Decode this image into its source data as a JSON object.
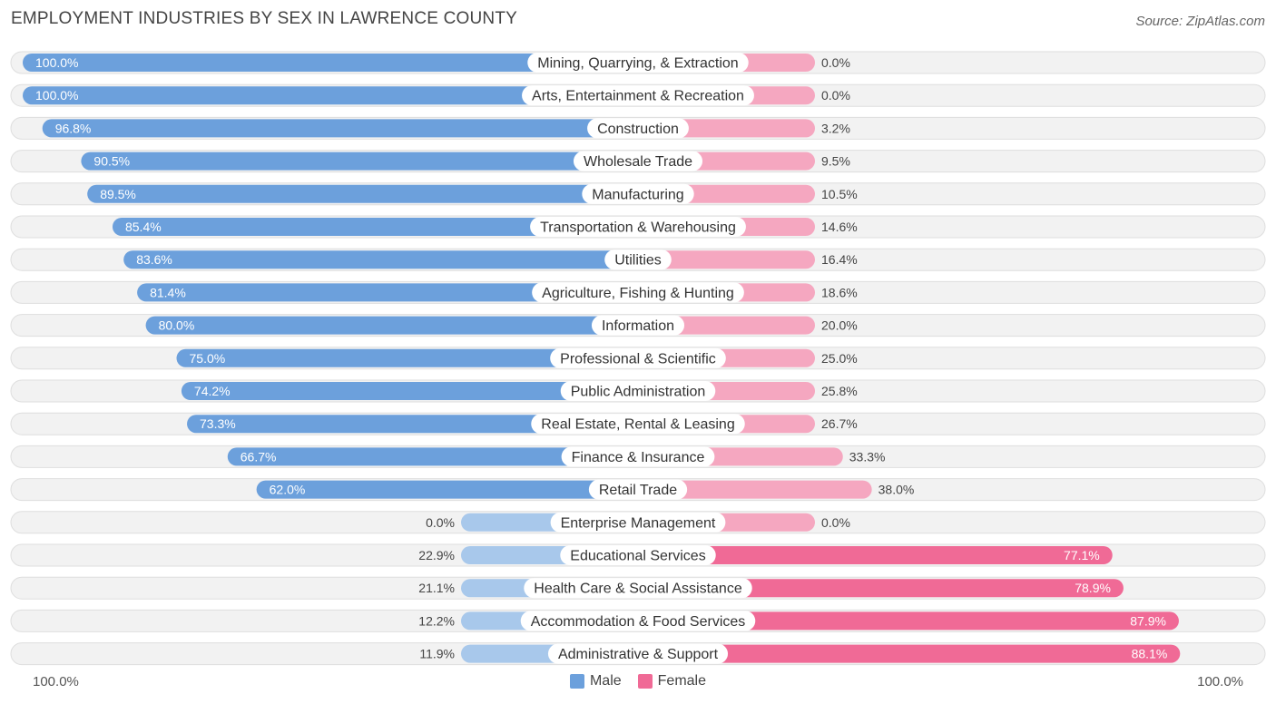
{
  "header": {
    "title": "Employment Industries by Sex in Lawrence County",
    "source": "Source: ZipAtlas.com"
  },
  "axis": {
    "left_label": "100.0%",
    "right_label": "100.0%"
  },
  "legend": {
    "male_label": "Male",
    "female_label": "Female"
  },
  "colors": {
    "male_strong": "#6ca0dc",
    "male_light": "#a8c8eb",
    "female_strong": "#f06a96",
    "female_light": "#f5a7c0",
    "row_bg": "#f2f2f2",
    "row_border": "#dedede"
  },
  "chart_data": {
    "type": "bar",
    "orientation": "horizontal-diverging",
    "title": "Employment Industries by Sex in Lawrence County",
    "xlim": [
      -100,
      100
    ],
    "categories": [
      "Mining, Quarrying, & Extraction",
      "Arts, Entertainment & Recreation",
      "Construction",
      "Wholesale Trade",
      "Manufacturing",
      "Transportation & Warehousing",
      "Utilities",
      "Agriculture, Fishing & Hunting",
      "Information",
      "Professional & Scientific",
      "Public Administration",
      "Real Estate, Rental & Leasing",
      "Finance & Insurance",
      "Retail Trade",
      "Enterprise Management",
      "Educational Services",
      "Health Care & Social Assistance",
      "Accommodation & Food Services",
      "Administrative & Support"
    ],
    "series": [
      {
        "name": "Male",
        "values": [
          100.0,
          100.0,
          96.8,
          90.5,
          89.5,
          85.4,
          83.6,
          81.4,
          80.0,
          75.0,
          74.2,
          73.3,
          66.7,
          62.0,
          0.0,
          22.9,
          21.1,
          12.2,
          11.9
        ],
        "labels": [
          "100.0%",
          "100.0%",
          "96.8%",
          "90.5%",
          "89.5%",
          "85.4%",
          "83.6%",
          "81.4%",
          "80.0%",
          "75.0%",
          "74.2%",
          "73.3%",
          "66.7%",
          "62.0%",
          "0.0%",
          "22.9%",
          "21.1%",
          "12.2%",
          "11.9%"
        ]
      },
      {
        "name": "Female",
        "values": [
          0.0,
          0.0,
          3.2,
          9.5,
          10.5,
          14.6,
          16.4,
          18.6,
          20.0,
          25.0,
          25.8,
          26.7,
          33.3,
          38.0,
          0.0,
          77.1,
          78.9,
          87.9,
          88.1
        ],
        "labels": [
          "0.0%",
          "0.0%",
          "3.2%",
          "9.5%",
          "10.5%",
          "14.6%",
          "16.4%",
          "18.6%",
          "20.0%",
          "25.0%",
          "25.8%",
          "26.7%",
          "33.3%",
          "38.0%",
          "0.0%",
          "77.1%",
          "78.9%",
          "87.9%",
          "88.1%"
        ]
      }
    ]
  }
}
